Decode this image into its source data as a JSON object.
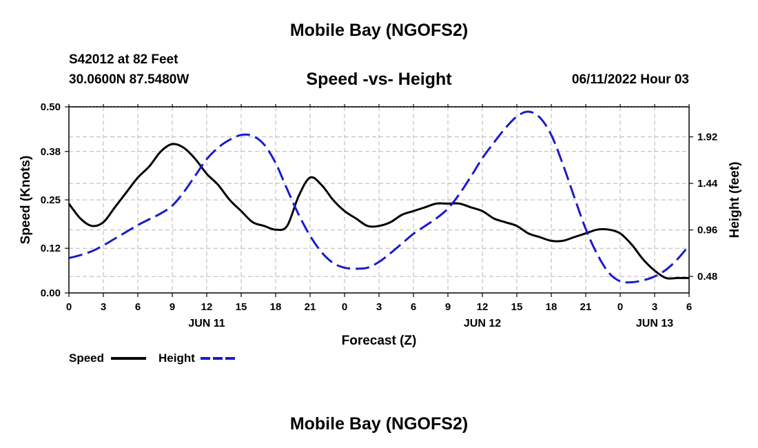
{
  "header": {
    "main_title": "Mobile Bay (NGOFS2)",
    "station": "S42012 at 82 Feet",
    "coords": "30.0600N  87.5480W",
    "subtitle": "Speed -vs- Height",
    "datetime": "06/11/2022 Hour 03",
    "footer_title": "Mobile Bay (NGOFS2)"
  },
  "chart_data": {
    "type": "line",
    "title": "Speed -vs- Height",
    "xlabel": "Forecast (Z)",
    "ylabel_left": "Speed (Knots)",
    "ylabel_right": "Height (feet)",
    "x_range_hours": [
      0,
      54
    ],
    "x_ticks": [
      {
        "h": 0,
        "label": "0"
      },
      {
        "h": 3,
        "label": "3"
      },
      {
        "h": 6,
        "label": "6"
      },
      {
        "h": 9,
        "label": "9"
      },
      {
        "h": 12,
        "label": "12"
      },
      {
        "h": 15,
        "label": "15"
      },
      {
        "h": 18,
        "label": "18"
      },
      {
        "h": 21,
        "label": "21"
      },
      {
        "h": 24,
        "label": "0"
      },
      {
        "h": 27,
        "label": "3"
      },
      {
        "h": 30,
        "label": "6"
      },
      {
        "h": 33,
        "label": "9"
      },
      {
        "h": 36,
        "label": "12"
      },
      {
        "h": 39,
        "label": "15"
      },
      {
        "h": 42,
        "label": "18"
      },
      {
        "h": 45,
        "label": "21"
      },
      {
        "h": 48,
        "label": "0"
      },
      {
        "h": 51,
        "label": "3"
      },
      {
        "h": 54,
        "label": "6"
      }
    ],
    "date_labels": [
      {
        "h": 12,
        "label": "JUN 11"
      },
      {
        "h": 36,
        "label": "JUN 12"
      },
      {
        "h": 51,
        "label": "JUN 13"
      }
    ],
    "y_left": {
      "range": [
        0,
        0.5
      ],
      "ticks": [
        "0.00",
        "0.12",
        "0.25",
        "0.38",
        "0.50"
      ]
    },
    "y_right": {
      "range": [
        0.31,
        2.23
      ],
      "ticks": [
        "0.48",
        "0.96",
        "1.44",
        "1.92"
      ]
    },
    "grid": true,
    "legend_position": "bottom-left",
    "series": [
      {
        "name": "Speed",
        "axis": "left",
        "color": "#000000",
        "dash": false,
        "points": [
          [
            0,
            0.24
          ],
          [
            1,
            0.2
          ],
          [
            2,
            0.18
          ],
          [
            3,
            0.19
          ],
          [
            4,
            0.23
          ],
          [
            5,
            0.27
          ],
          [
            6,
            0.31
          ],
          [
            7,
            0.34
          ],
          [
            8,
            0.38
          ],
          [
            9,
            0.4
          ],
          [
            10,
            0.39
          ],
          [
            11,
            0.36
          ],
          [
            12,
            0.32
          ],
          [
            13,
            0.29
          ],
          [
            14,
            0.25
          ],
          [
            15,
            0.22
          ],
          [
            16,
            0.19
          ],
          [
            17,
            0.18
          ],
          [
            18,
            0.17
          ],
          [
            19,
            0.18
          ],
          [
            20,
            0.26
          ],
          [
            21,
            0.31
          ],
          [
            22,
            0.29
          ],
          [
            23,
            0.25
          ],
          [
            24,
            0.22
          ],
          [
            25,
            0.2
          ],
          [
            26,
            0.18
          ],
          [
            27,
            0.18
          ],
          [
            28,
            0.19
          ],
          [
            29,
            0.21
          ],
          [
            30,
            0.22
          ],
          [
            31,
            0.23
          ],
          [
            32,
            0.24
          ],
          [
            33,
            0.24
          ],
          [
            34,
            0.24
          ],
          [
            35,
            0.23
          ],
          [
            36,
            0.22
          ],
          [
            37,
            0.2
          ],
          [
            38,
            0.19
          ],
          [
            39,
            0.18
          ],
          [
            40,
            0.16
          ],
          [
            41,
            0.15
          ],
          [
            42,
            0.14
          ],
          [
            43,
            0.14
          ],
          [
            44,
            0.15
          ],
          [
            45,
            0.16
          ],
          [
            46,
            0.17
          ],
          [
            47,
            0.17
          ],
          [
            48,
            0.16
          ],
          [
            49,
            0.13
          ],
          [
            50,
            0.09
          ],
          [
            51,
            0.06
          ],
          [
            52,
            0.04
          ],
          [
            53,
            0.04
          ],
          [
            54,
            0.04
          ]
        ]
      },
      {
        "name": "Height",
        "axis": "right",
        "color": "#1a1acd",
        "dash": true,
        "points": [
          [
            0,
            0.67
          ],
          [
            1,
            0.7
          ],
          [
            2,
            0.74
          ],
          [
            3,
            0.8
          ],
          [
            4,
            0.87
          ],
          [
            5,
            0.94
          ],
          [
            6,
            1.01
          ],
          [
            7,
            1.07
          ],
          [
            8,
            1.13
          ],
          [
            9,
            1.21
          ],
          [
            10,
            1.35
          ],
          [
            11,
            1.52
          ],
          [
            12,
            1.69
          ],
          [
            13,
            1.81
          ],
          [
            14,
            1.89
          ],
          [
            15,
            1.94
          ],
          [
            16,
            1.93
          ],
          [
            17,
            1.84
          ],
          [
            18,
            1.65
          ],
          [
            19,
            1.38
          ],
          [
            20,
            1.12
          ],
          [
            21,
            0.9
          ],
          [
            22,
            0.73
          ],
          [
            23,
            0.62
          ],
          [
            24,
            0.57
          ],
          [
            25,
            0.56
          ],
          [
            26,
            0.57
          ],
          [
            27,
            0.63
          ],
          [
            28,
            0.72
          ],
          [
            29,
            0.82
          ],
          [
            30,
            0.92
          ],
          [
            31,
            1.0
          ],
          [
            32,
            1.08
          ],
          [
            33,
            1.18
          ],
          [
            34,
            1.33
          ],
          [
            35,
            1.51
          ],
          [
            36,
            1.7
          ],
          [
            37,
            1.86
          ],
          [
            38,
            2.01
          ],
          [
            39,
            2.13
          ],
          [
            40,
            2.18
          ],
          [
            41,
            2.12
          ],
          [
            42,
            1.94
          ],
          [
            43,
            1.64
          ],
          [
            44,
            1.3
          ],
          [
            45,
            0.97
          ],
          [
            46,
            0.71
          ],
          [
            47,
            0.52
          ],
          [
            48,
            0.43
          ],
          [
            49,
            0.42
          ],
          [
            50,
            0.44
          ],
          [
            51,
            0.48
          ],
          [
            52,
            0.55
          ],
          [
            53,
            0.66
          ],
          [
            54,
            0.8
          ]
        ]
      }
    ]
  }
}
